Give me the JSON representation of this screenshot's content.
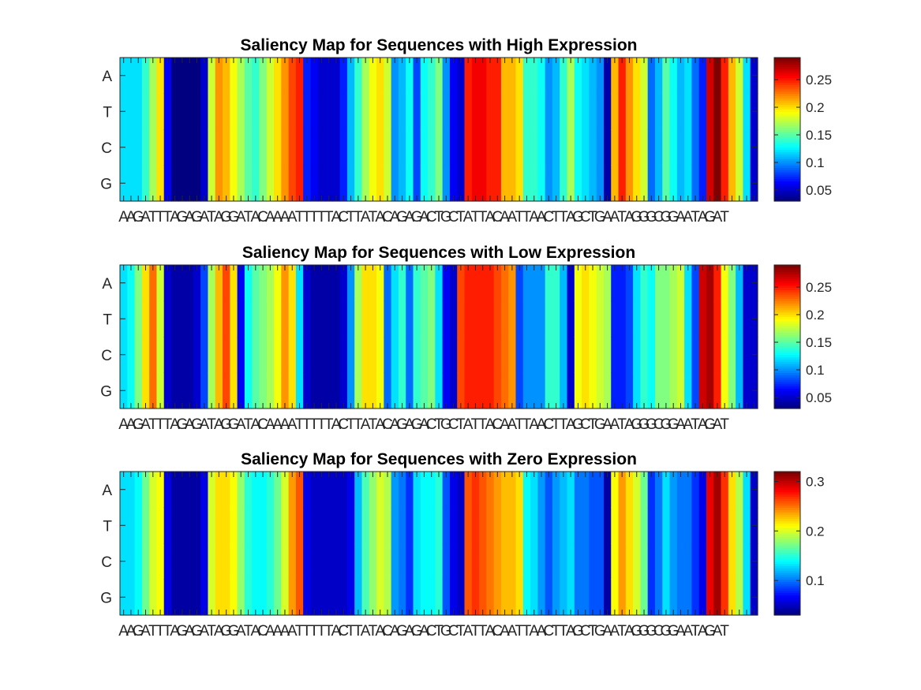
{
  "chart_data": [
    {
      "type": "heatmap",
      "title": "Saliency Map for Sequences with High Expression",
      "y_categories": [
        "A",
        "T",
        "C",
        "G"
      ],
      "x_categories": [
        "A",
        "A",
        "G",
        "A",
        "T",
        "T",
        "T",
        "A",
        "G",
        "A",
        "G",
        "A",
        "T",
        "A",
        "G",
        "G",
        "A",
        "T",
        "A",
        "C",
        "A",
        "A",
        "A",
        "A",
        "T",
        "T",
        "T",
        "T",
        "T",
        "A",
        "C",
        "T",
        "T",
        "A",
        "T",
        "A",
        "C",
        "A",
        "G",
        "A",
        "G",
        "A",
        "C",
        "T",
        "G",
        "C",
        "T",
        "A",
        "T",
        "T",
        "A",
        "C",
        "A",
        "A",
        "T",
        "T",
        "A",
        "A",
        "C",
        "T",
        "T",
        "A",
        "G",
        "C",
        "T",
        "G",
        "A",
        "A",
        "T",
        "A",
        "G",
        "G",
        "G",
        "C",
        "G",
        "G",
        "A",
        "A",
        "T",
        "A",
        "G",
        "A",
        "T"
      ],
      "values_by_column": [
        0.12,
        0.12,
        0.12,
        0.14,
        0.17,
        0.2,
        0.06,
        0.03,
        0.03,
        0.03,
        0.03,
        0.05,
        0.18,
        0.22,
        0.21,
        0.19,
        0.17,
        0.15,
        0.14,
        0.16,
        0.18,
        0.2,
        0.22,
        0.24,
        0.25,
        0.07,
        0.06,
        0.05,
        0.05,
        0.05,
        0.07,
        0.11,
        0.14,
        0.17,
        0.19,
        0.2,
        0.18,
        0.1,
        0.11,
        0.13,
        0.08,
        0.13,
        0.14,
        0.16,
        0.1,
        0.06,
        0.05,
        0.25,
        0.26,
        0.26,
        0.25,
        0.25,
        0.21,
        0.21,
        0.2,
        0.14,
        0.14,
        0.13,
        0.1,
        0.11,
        0.14,
        0.17,
        0.13,
        0.12,
        0.11,
        0.1,
        0.04,
        0.21,
        0.25,
        0.22,
        0.2,
        0.18,
        0.09,
        0.11,
        0.15,
        0.13,
        0.11,
        0.12,
        0.09,
        0.07,
        0.27,
        0.29,
        0.25,
        0.21,
        0.18,
        0.12,
        0.05
      ],
      "colorbar": {
        "ticks": [
          0.05,
          0.1,
          0.15,
          0.2,
          0.25
        ],
        "tick_labels": [
          "0.05",
          "0.1",
          "0.15",
          "0.2",
          "0.25"
        ],
        "range": [
          0.03,
          0.29
        ]
      },
      "colormap": "jet"
    },
    {
      "type": "heatmap",
      "title": "Saliency Map for Sequences with Low Expression",
      "y_categories": [
        "A",
        "T",
        "C",
        "G"
      ],
      "x_categories": [
        "A",
        "A",
        "G",
        "A",
        "T",
        "T",
        "T",
        "A",
        "G",
        "A",
        "G",
        "A",
        "T",
        "A",
        "G",
        "G",
        "A",
        "T",
        "A",
        "C",
        "A",
        "A",
        "A",
        "A",
        "T",
        "T",
        "T",
        "T",
        "T",
        "A",
        "C",
        "T",
        "T",
        "A",
        "T",
        "A",
        "C",
        "A",
        "G",
        "A",
        "G",
        "A",
        "C",
        "T",
        "G",
        "C",
        "T",
        "A",
        "T",
        "T",
        "A",
        "C",
        "A",
        "A",
        "T",
        "T",
        "A",
        "A",
        "C",
        "T",
        "T",
        "A",
        "G",
        "C",
        "T",
        "G",
        "A",
        "A",
        "T",
        "A",
        "G",
        "G",
        "G",
        "C",
        "G",
        "G",
        "A",
        "A",
        "T",
        "A",
        "G",
        "A",
        "T"
      ],
      "values_by_column": [
        0.12,
        0.13,
        0.16,
        0.2,
        0.23,
        0.18,
        0.05,
        0.04,
        0.04,
        0.04,
        0.05,
        0.08,
        0.17,
        0.21,
        0.24,
        0.2,
        0.06,
        0.13,
        0.15,
        0.16,
        0.17,
        0.19,
        0.22,
        0.2,
        0.12,
        0.05,
        0.04,
        0.04,
        0.04,
        0.04,
        0.05,
        0.1,
        0.17,
        0.2,
        0.2,
        0.19,
        0.09,
        0.12,
        0.14,
        0.09,
        0.14,
        0.15,
        0.16,
        0.12,
        0.06,
        0.05,
        0.24,
        0.25,
        0.25,
        0.25,
        0.25,
        0.24,
        0.23,
        0.22,
        0.08,
        0.1,
        0.1,
        0.1,
        0.14,
        0.14,
        0.11,
        0.05,
        0.19,
        0.2,
        0.19,
        0.18,
        0.17,
        0.07,
        0.07,
        0.08,
        0.12,
        0.14,
        0.13,
        0.16,
        0.16,
        0.17,
        0.18,
        0.12,
        0.08,
        0.27,
        0.28,
        0.25,
        0.19,
        0.16,
        0.11,
        0.05,
        0.05
      ],
      "colorbar": {
        "ticks": [
          0.05,
          0.1,
          0.15,
          0.2,
          0.25
        ],
        "tick_labels": [
          "0.05",
          "0.1",
          "0.15",
          "0.2",
          "0.25"
        ],
        "range": [
          0.03,
          0.29
        ]
      },
      "colormap": "jet"
    },
    {
      "type": "heatmap",
      "title": "Saliency Map for Sequences with Zero Expression",
      "y_categories": [
        "A",
        "T",
        "C",
        "G"
      ],
      "x_categories": [
        "A",
        "A",
        "G",
        "A",
        "T",
        "T",
        "T",
        "A",
        "G",
        "A",
        "G",
        "A",
        "T",
        "A",
        "G",
        "G",
        "A",
        "T",
        "A",
        "C",
        "A",
        "A",
        "A",
        "A",
        "T",
        "T",
        "T",
        "T",
        "T",
        "A",
        "C",
        "T",
        "T",
        "A",
        "T",
        "A",
        "C",
        "A",
        "G",
        "A",
        "G",
        "A",
        "C",
        "T",
        "G",
        "C",
        "T",
        "A",
        "T",
        "T",
        "A",
        "C",
        "A",
        "A",
        "T",
        "T",
        "A",
        "A",
        "C",
        "T",
        "T",
        "A",
        "G",
        "C",
        "T",
        "G",
        "A",
        "A",
        "T",
        "A",
        "G",
        "G",
        "G",
        "C",
        "G",
        "G",
        "A",
        "A",
        "T",
        "A",
        "G",
        "A",
        "T"
      ],
      "values_by_column": [
        0.13,
        0.13,
        0.14,
        0.17,
        0.2,
        0.21,
        0.06,
        0.04,
        0.04,
        0.04,
        0.04,
        0.06,
        0.2,
        0.22,
        0.22,
        0.21,
        0.18,
        0.15,
        0.14,
        0.14,
        0.15,
        0.17,
        0.2,
        0.24,
        0.26,
        0.06,
        0.05,
        0.05,
        0.05,
        0.05,
        0.05,
        0.06,
        0.12,
        0.16,
        0.18,
        0.2,
        0.19,
        0.11,
        0.1,
        0.08,
        0.13,
        0.14,
        0.14,
        0.15,
        0.09,
        0.06,
        0.05,
        0.26,
        0.27,
        0.26,
        0.25,
        0.24,
        0.23,
        0.23,
        0.22,
        0.14,
        0.13,
        0.11,
        0.09,
        0.11,
        0.12,
        0.13,
        0.1,
        0.1,
        0.09,
        0.09,
        0.04,
        0.21,
        0.24,
        0.22,
        0.2,
        0.17,
        0.08,
        0.1,
        0.13,
        0.11,
        0.1,
        0.1,
        0.08,
        0.06,
        0.29,
        0.31,
        0.27,
        0.22,
        0.19,
        0.13,
        0.05
      ],
      "colorbar": {
        "ticks": [
          0.1,
          0.2,
          0.3
        ],
        "tick_labels": [
          "0.1",
          "0.2",
          "0.3"
        ],
        "range": [
          0.03,
          0.32
        ]
      },
      "colormap": "jet"
    }
  ]
}
